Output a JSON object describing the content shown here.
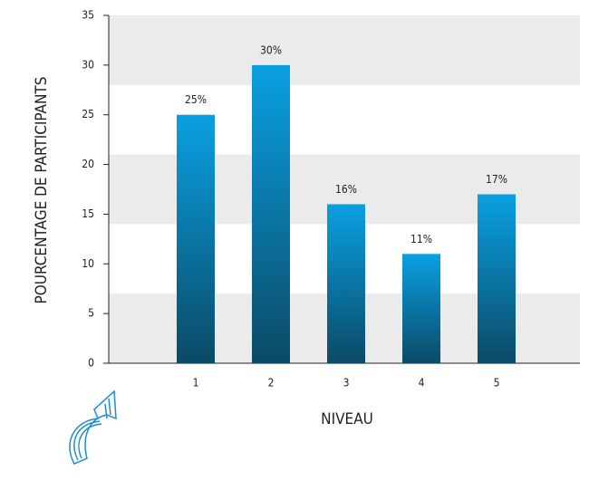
{
  "chart_data": {
    "type": "bar",
    "x_label": "NIVEAU",
    "y_label": "POURCENTAGE DE PARTICIPANTS",
    "categories": [
      "1",
      "2",
      "3",
      "4",
      "5"
    ],
    "values": [
      25,
      30,
      16,
      11,
      17
    ],
    "value_labels": [
      "25%",
      "30%",
      "16%",
      "11%",
      "17%"
    ],
    "ylim": [
      0,
      35
    ],
    "yticks": [
      0,
      5,
      10,
      15,
      20,
      25,
      30,
      35
    ],
    "color_top": "#0aa0e2",
    "color_bottom": "#0b4a66"
  }
}
